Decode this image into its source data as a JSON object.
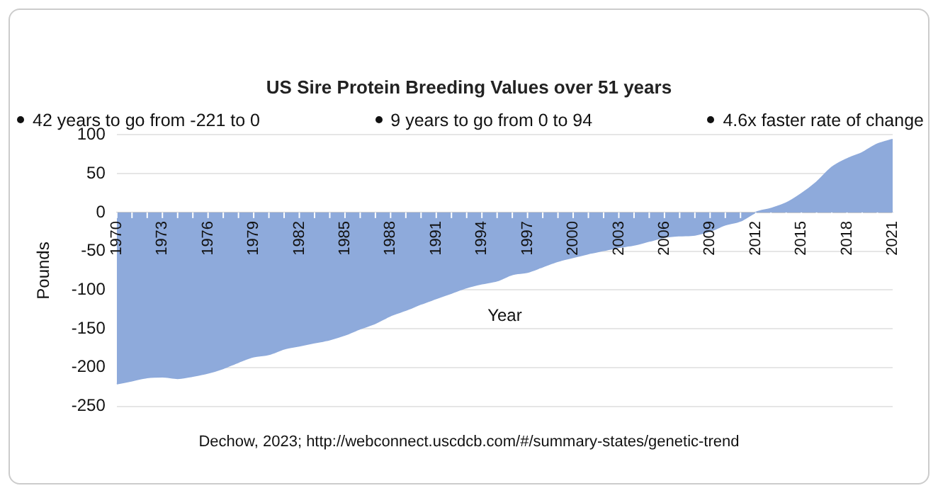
{
  "chart_data": {
    "type": "area",
    "title": "US Sire Protein Breeding Values over 51 years",
    "annotations": [
      "42 years to go from -221 to 0",
      "9 years to go from 0 to 94",
      "4.6x faster rate of change",
      "Dechow, 2023; http://webconnect.uscdcb.com/#/summary-states/genetic-trend"
    ],
    "xlabel": "Year",
    "ylabel": "Pounds",
    "categories": [
      "1970",
      null,
      null,
      "1973",
      null,
      null,
      "1976",
      null,
      null,
      "1979",
      null,
      null,
      "1982",
      null,
      null,
      "1985",
      null,
      null,
      "1988",
      null,
      null,
      "1991",
      null,
      null,
      "1994",
      null,
      null,
      "1997",
      null,
      null,
      "2000",
      null,
      null,
      "2003",
      null,
      null,
      "2006",
      null,
      null,
      "2009",
      null,
      null,
      "2012",
      null,
      null,
      "2015",
      null,
      null,
      "2018",
      null,
      null,
      "2021"
    ],
    "series": [
      {
        "color": "#8eaadb",
        "values": [
          -221,
          -217,
          -213,
          -212,
          -214,
          -211,
          -207,
          -201,
          -193,
          -186,
          -183,
          -176,
          -172,
          -168,
          -164,
          -158,
          -150,
          -143,
          -133,
          -126,
          -118,
          -111,
          -104,
          -97,
          -92,
          -88,
          -80,
          -77,
          -70,
          -63,
          -58,
          -53,
          -49,
          -45,
          -42,
          -37,
          -32,
          -30,
          -29,
          -24,
          -16,
          -11,
          0,
          5,
          12,
          24,
          39,
          58,
          69,
          77,
          88,
          94
        ]
      }
    ],
    "ylim": [
      -250,
      100
    ],
    "yticks": [
      -250,
      -200,
      -150,
      -100,
      -50,
      0,
      50,
      100
    ],
    "grid": "y",
    "legend": false
  }
}
